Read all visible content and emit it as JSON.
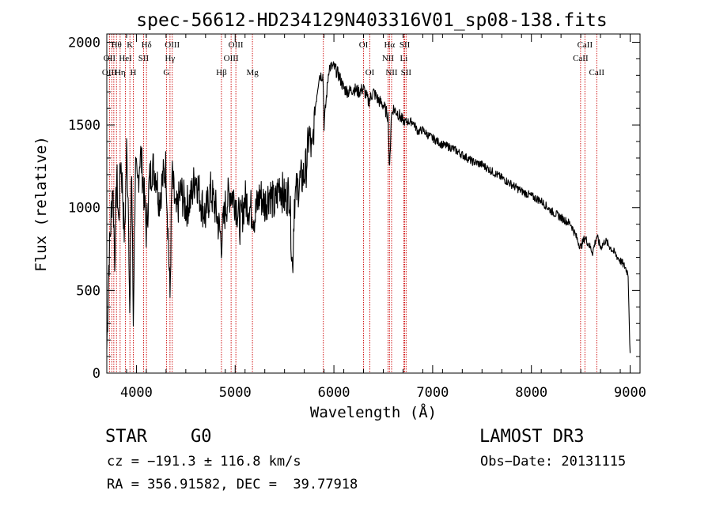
{
  "chart_data": {
    "type": "line",
    "title": "spec-56612-HD234129N403316V01_sp08-138.fits",
    "xlabel": "Wavelength (Å)",
    "ylabel": "Flux (relative)",
    "xlim": [
      3700,
      9100
    ],
    "ylim": [
      0,
      2050
    ],
    "xticks": [
      4000,
      5000,
      6000,
      7000,
      8000,
      9000
    ],
    "yticks": [
      0,
      500,
      1000,
      1500,
      2000
    ],
    "grid": false,
    "series": [
      {
        "name": "flux",
        "x": [
          3700,
          3720,
          3740,
          3760,
          3780,
          3800,
          3820,
          3840,
          3860,
          3880,
          3900,
          3920,
          3933,
          3950,
          3968,
          3990,
          4010,
          4040,
          4070,
          4101,
          4130,
          4160,
          4200,
          4230,
          4260,
          4300,
          4340,
          4360,
          4400,
          4450,
          4500,
          4550,
          4600,
          4650,
          4700,
          4750,
          4800,
          4861,
          4900,
          4950,
          5000,
          5050,
          5100,
          5150,
          5200,
          5250,
          5300,
          5350,
          5400,
          5450,
          5500,
          5550,
          5580,
          5600,
          5650,
          5700,
          5720,
          5750,
          5780,
          5800,
          5850,
          5890,
          5900,
          5950,
          6000,
          6050,
          6100,
          6150,
          6200,
          6250,
          6300,
          6350,
          6400,
          6450,
          6500,
          6550,
          6563,
          6580,
          6600,
          6650,
          6700,
          6750,
          6800,
          6850,
          6900,
          6950,
          7000,
          7100,
          7200,
          7300,
          7400,
          7500,
          7600,
          7700,
          7800,
          7900,
          8000,
          8100,
          8200,
          8300,
          8400,
          8450,
          8498,
          8542,
          8580,
          8620,
          8662,
          8700,
          8750,
          8800,
          8850,
          8900,
          8950,
          8980,
          9000
        ],
        "values": [
          150,
          650,
          900,
          1150,
          700,
          1200,
          900,
          1300,
          1100,
          800,
          1350,
          1000,
          260,
          1300,
          300,
          1250,
          1100,
          1350,
          1150,
          850,
          1150,
          1250,
          1200,
          1050,
          1150,
          1250,
          450,
          1200,
          950,
          1100,
          1000,
          1050,
          1200,
          1050,
          950,
          1100,
          1000,
          800,
          1000,
          1100,
          1050,
          900,
          1050,
          1000,
          950,
          1080,
          1020,
          1100,
          1000,
          1150,
          1050,
          1100,
          620,
          1050,
          1150,
          1200,
          1250,
          1450,
          1300,
          1550,
          1800,
          1800,
          1500,
          1850,
          1850,
          1800,
          1720,
          1700,
          1720,
          1700,
          1720,
          1640,
          1700,
          1650,
          1620,
          1550,
          1200,
          1550,
          1600,
          1570,
          1520,
          1520,
          1520,
          1460,
          1470,
          1440,
          1420,
          1380,
          1360,
          1320,
          1280,
          1260,
          1220,
          1180,
          1140,
          1100,
          1070,
          1040,
          980,
          940,
          900,
          830,
          760,
          820,
          780,
          730,
          830,
          760,
          800,
          760,
          720,
          680,
          640,
          600,
          100
        ]
      }
    ],
    "line_labels": [
      {
        "text": "Hθ",
        "x": 3798,
        "row": 1
      },
      {
        "text": "K",
        "x": 3934,
        "row": 1
      },
      {
        "text": "Hδ",
        "x": 4102,
        "row": 1
      },
      {
        "text": "OIII",
        "x": 4363,
        "row": 1
      },
      {
        "text": "OIII",
        "x": 5007,
        "row": 1
      },
      {
        "text": "OI",
        "x": 6300,
        "row": 1
      },
      {
        "text": "Hα",
        "x": 6563,
        "row": 1
      },
      {
        "text": "SII",
        "x": 6717,
        "row": 1
      },
      {
        "text": "CaII",
        "x": 8542,
        "row": 1
      },
      {
        "text": "OII",
        "x": 3727,
        "row": 2
      },
      {
        "text": "HeI",
        "x": 3889,
        "row": 2
      },
      {
        "text": "SII",
        "x": 4072,
        "row": 2
      },
      {
        "text": "Hγ",
        "x": 4340,
        "row": 2
      },
      {
        "text": "OIII",
        "x": 4959,
        "row": 2
      },
      {
        "text": "NII",
        "x": 6548,
        "row": 2
      },
      {
        "text": "Li",
        "x": 6708,
        "row": 2
      },
      {
        "text": "CaII",
        "x": 8498,
        "row": 2
      },
      {
        "text": "OIII",
        "x": 3727,
        "row": 3
      },
      {
        "text": "Hη",
        "x": 3835,
        "row": 3
      },
      {
        "text": "H",
        "x": 3968,
        "row": 3
      },
      {
        "text": "G",
        "x": 4304,
        "row": 3
      },
      {
        "text": "Hβ",
        "x": 4861,
        "row": 3
      },
      {
        "text": "Mg",
        "x": 5175,
        "row": 3
      },
      {
        "text": "OI",
        "x": 6364,
        "row": 3
      },
      {
        "text": "NII",
        "x": 6584,
        "row": 3
      },
      {
        "text": "SII",
        "x": 6731,
        "row": 3
      },
      {
        "text": "CaII",
        "x": 8662,
        "row": 3
      }
    ],
    "marker_lines": [
      3727,
      3750,
      3771,
      3798,
      3835,
      3889,
      3934,
      3968,
      4072,
      4102,
      4304,
      4340,
      4363,
      4861,
      4959,
      5007,
      5175,
      5893,
      6300,
      6364,
      6548,
      6563,
      6584,
      6708,
      6717,
      6731,
      8498,
      8542,
      8662
    ],
    "colors": {
      "axis": "#000000",
      "line": "#000000",
      "marker": "#cc0000"
    }
  },
  "info": {
    "object_class": "STAR",
    "subclass": "G0",
    "survey": "LAMOST DR3",
    "cz": "cz = −191.3 ± 116.8 km/s",
    "obs_date": "Obs−Date: 20131115",
    "coords": "RA = 356.91582, DEC =  39.77918"
  }
}
